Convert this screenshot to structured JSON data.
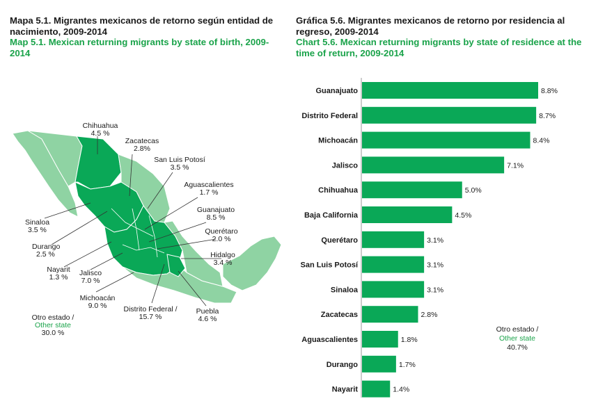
{
  "colors": {
    "accent_green": "#1aa34a",
    "bar_green": "#0aa857",
    "map_light": "#8fd3a3",
    "map_dark": "#0aa857"
  },
  "map_panel": {
    "title_es": "Mapa 5.1. Migrantes mexicanos de retorno según entidad de nacimiento, 2009-2014",
    "title_en": "Map 5.1. Mexican returning migrants by state of birth, 2009-2014",
    "labels": [
      {
        "name": "Chihuahua",
        "value": "4.5 %"
      },
      {
        "name": "Zacatecas",
        "value": "2.8%"
      },
      {
        "name": "San Luis Potosí",
        "value": "3.5 %"
      },
      {
        "name": "Aguascalientes",
        "value": "1.7 %"
      },
      {
        "name": "Guanajuato",
        "value": "8.5 %"
      },
      {
        "name": "Querétaro",
        "value": "2.0 %"
      },
      {
        "name": "Hidalgo",
        "value": "3.4 %"
      },
      {
        "name": "Sinaloa",
        "value": "3.5 %"
      },
      {
        "name": "Durango",
        "value": "2.5 %"
      },
      {
        "name": "Nayarit",
        "value": "1.3 %"
      },
      {
        "name": "Jalisco",
        "value": "7.0 %"
      },
      {
        "name": "Michoacán",
        "value": "9.0 %"
      },
      {
        "name": "Distrito Federal /",
        "value": "15.7 %"
      },
      {
        "name": "Puebla",
        "value": "4.6 %"
      }
    ],
    "other": {
      "es": "Otro estado /",
      "en": "Other state",
      "value": "30.0 %"
    }
  },
  "chart_panel": {
    "title_es": "Gráfica 5.6. Migrantes mexicanos de retorno por residencia al regreso, 2009-2014",
    "title_en": "Chart 5.6. Mexican returning migrants by state of residence at the time of return, 2009-2014",
    "other": {
      "es": "Otro estado /",
      "en": "Other state",
      "value": "40.7%"
    }
  },
  "chart_data": {
    "type": "bar",
    "orientation": "horizontal",
    "categories": [
      "Guanajuato",
      "Distrito Federal",
      "Michoacán",
      "Jalisco",
      "Chihuahua",
      "Baja California",
      "Querétaro",
      "San Luis Potosí",
      "Sinaloa",
      "Zacatecas",
      "Aguascalientes",
      "Durango",
      "Nayarit"
    ],
    "values": [
      8.8,
      8.7,
      8.4,
      7.1,
      5.0,
      4.5,
      3.1,
      3.1,
      3.1,
      2.8,
      1.8,
      1.7,
      1.4
    ],
    "value_labels": [
      "8.8%",
      "8.7%",
      "8.4%",
      "7.1%",
      "5.0%",
      "4.5%",
      "3.1%",
      "3.1%",
      "3.1%",
      "2.8%",
      "1.8%",
      "1.7%",
      "1.4%"
    ],
    "title": "Chart 5.6. Mexican returning migrants by state of residence at the time of return, 2009-2014",
    "xlabel": "",
    "ylabel": "",
    "xlim": [
      0,
      8.8
    ],
    "grid": false,
    "legend": "none"
  }
}
